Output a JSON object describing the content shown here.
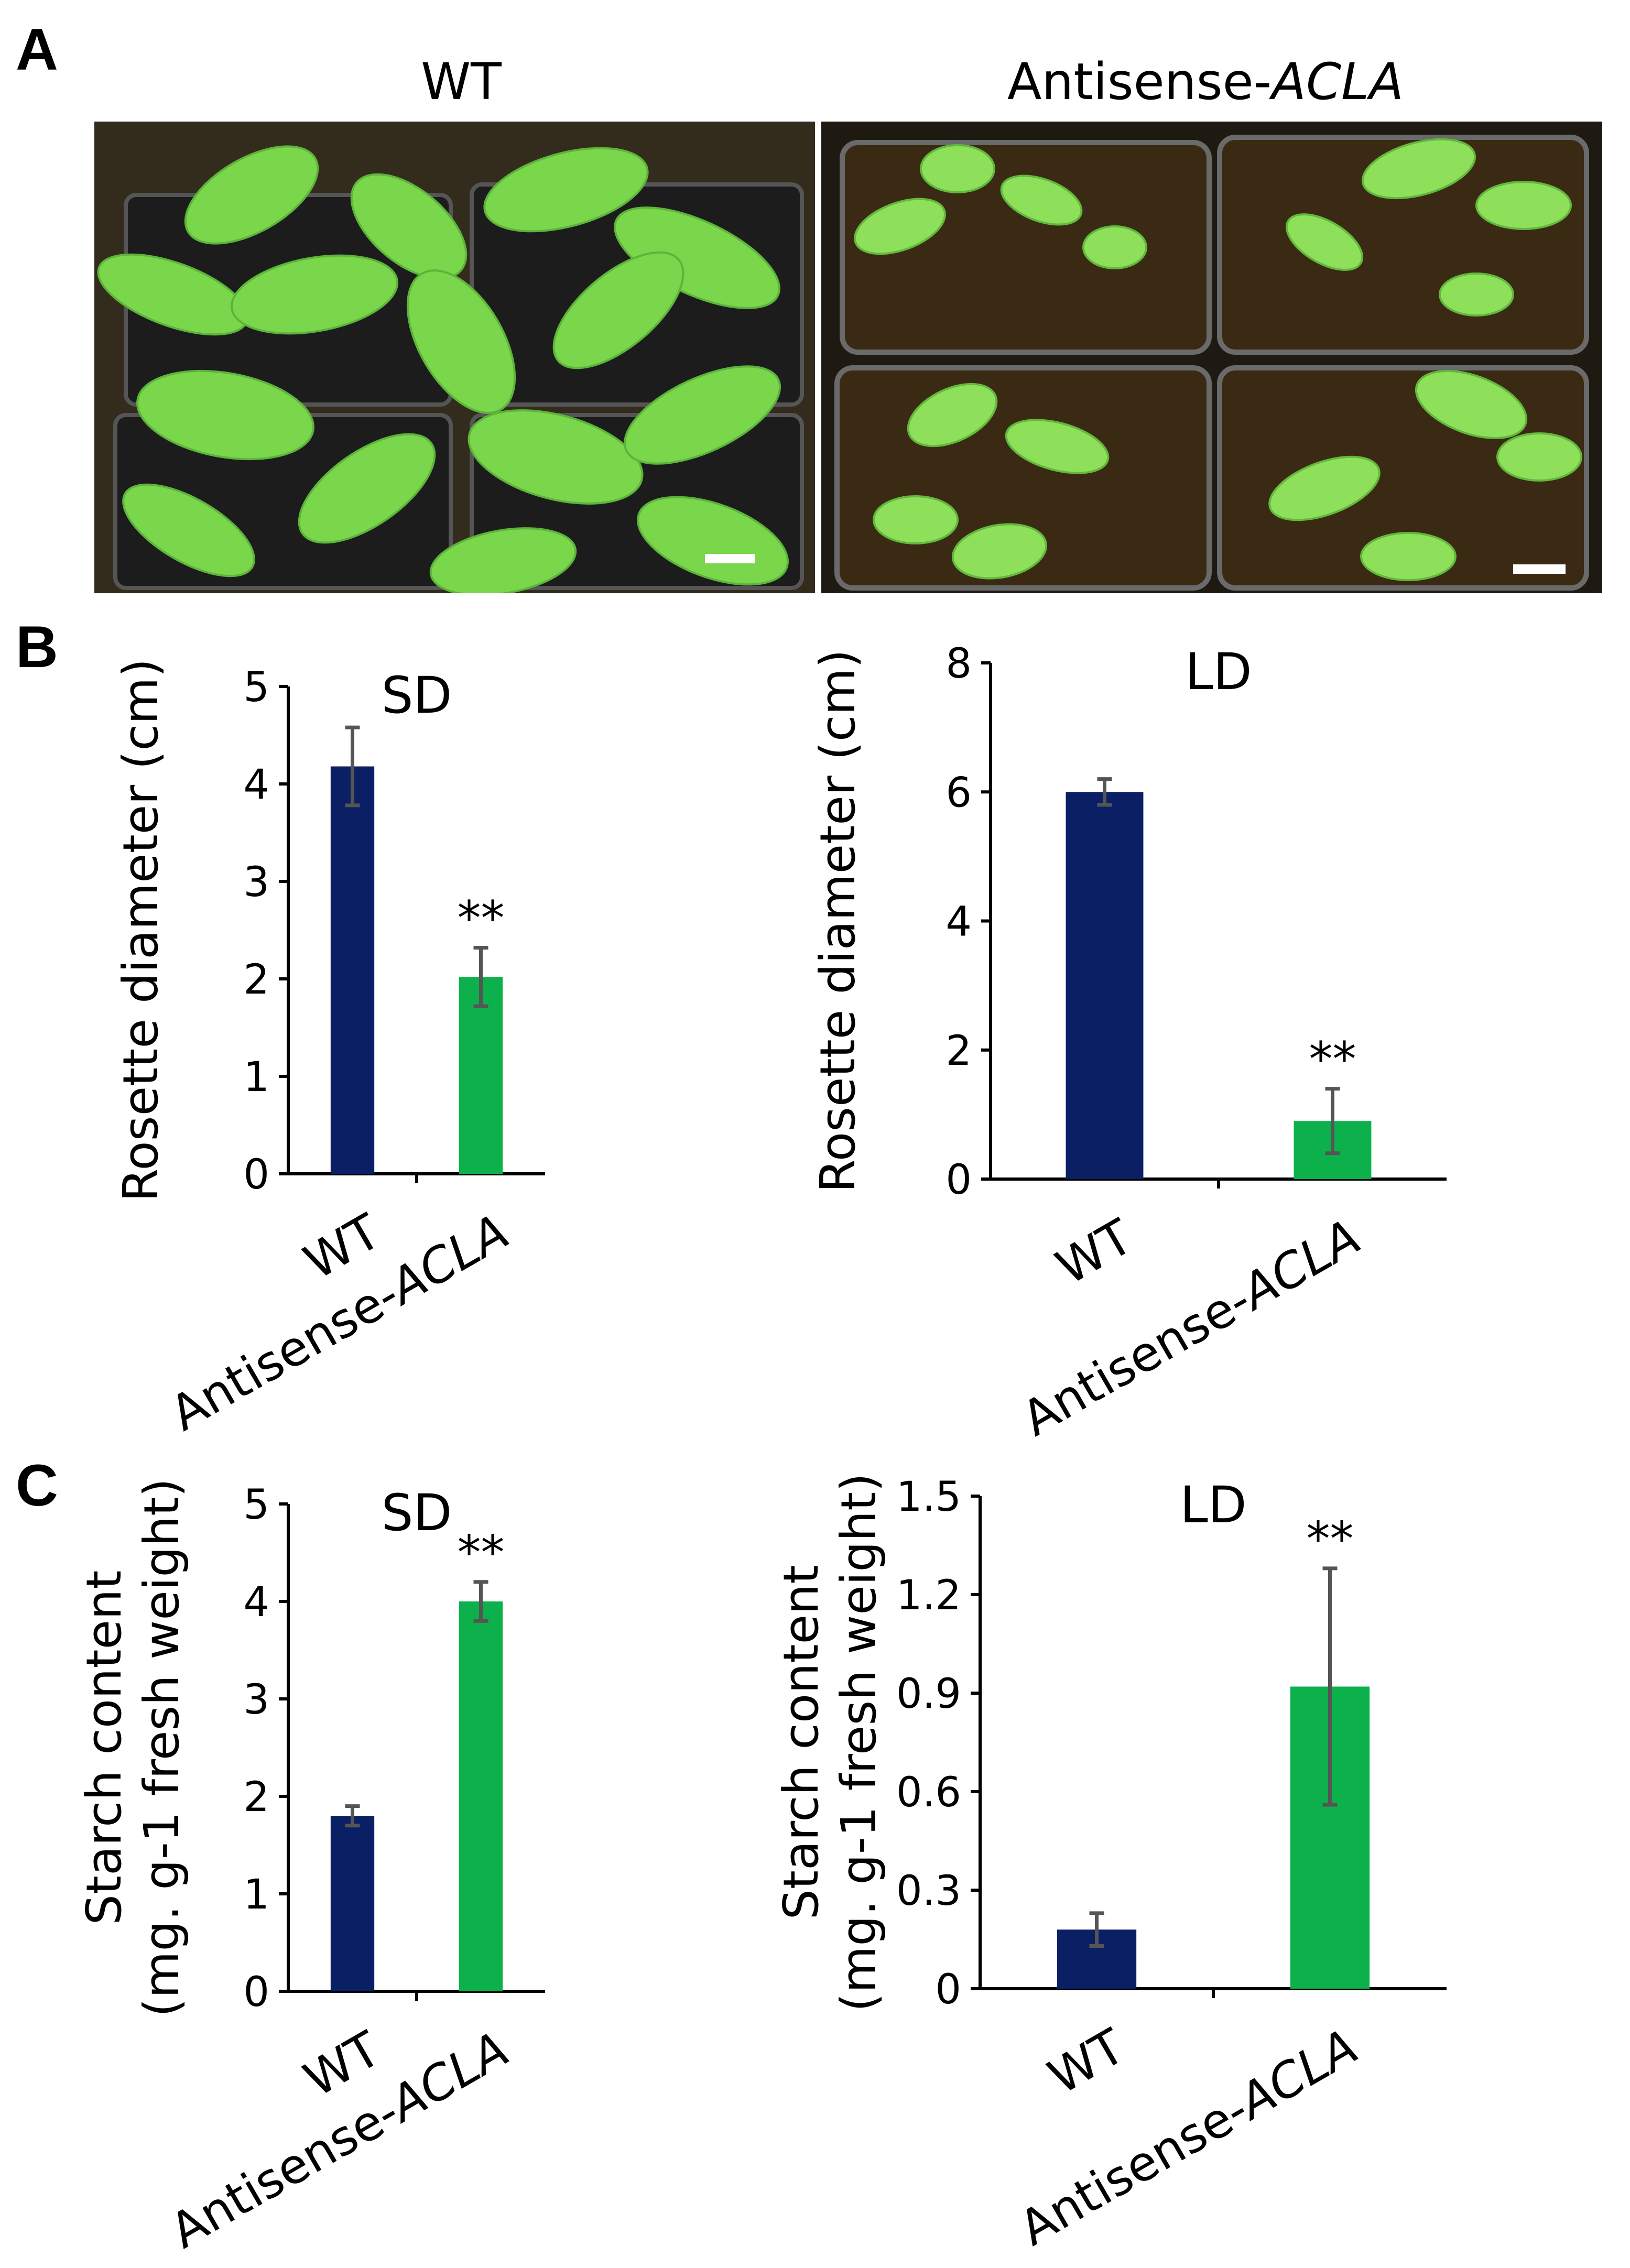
{
  "panels": {
    "A": "A",
    "B": "B",
    "C": "C"
  },
  "photos": {
    "left": {
      "label": "WT",
      "description_icon": "plant-rosette-photo"
    },
    "right": {
      "label_prefix": "Antisense-",
      "label_italic": "ACLA",
      "description_icon": "plant-rosette-photo"
    }
  },
  "colors": {
    "wt": "#0b1f64",
    "antisense": "#0db14b",
    "errorbar": "#555555",
    "leaf": "#7ad64a",
    "soil": "#3a2a14",
    "pot": "#1c1c1c"
  },
  "chart_data": [
    {
      "type": "bar",
      "panel": "B",
      "title": "SD",
      "ylabel": [
        "Rosette diameter (cm)"
      ],
      "categories": [
        "WT",
        "Antisense-ACLA"
      ],
      "values": [
        4.18,
        2.02
      ],
      "errors": [
        0.4,
        0.3
      ],
      "significance": [
        "",
        "**"
      ],
      "ylim": [
        0,
        5
      ],
      "yticks": [
        "0",
        "1",
        "2",
        "3",
        "4",
        "5"
      ]
    },
    {
      "type": "bar",
      "panel": "B",
      "title": "LD",
      "ylabel": [
        "Rosette diameter (cm)"
      ],
      "categories": [
        "WT",
        "Antisense-ACLA"
      ],
      "values": [
        6.0,
        0.9
      ],
      "errors": [
        0.2,
        0.5
      ],
      "significance": [
        "",
        "**"
      ],
      "ylim": [
        0,
        8
      ],
      "yticks": [
        "0",
        "2",
        "4",
        "6",
        "8"
      ]
    },
    {
      "type": "bar",
      "panel": "C",
      "title": "SD",
      "ylabel": [
        "Starch content",
        "(mg. g-1 fresh weight)"
      ],
      "categories": [
        "WT",
        "Antisense-ACLA"
      ],
      "values": [
        1.8,
        4.0
      ],
      "errors": [
        0.1,
        0.2
      ],
      "significance": [
        "",
        "**"
      ],
      "ylim": [
        0,
        5
      ],
      "yticks": [
        "0",
        "1",
        "2",
        "3",
        "4",
        "5"
      ]
    },
    {
      "type": "bar",
      "panel": "C",
      "title": "LD",
      "ylabel": [
        "Starch content",
        "(mg. g-1 fresh weight)"
      ],
      "categories": [
        "WT",
        "Antisense-ACLA"
      ],
      "values": [
        0.18,
        0.92
      ],
      "errors": [
        0.05,
        0.36
      ],
      "significance": [
        "",
        "**"
      ],
      "ylim": [
        0,
        1.5
      ],
      "yticks": [
        "0",
        "0.3",
        "0.6",
        "0.9",
        "1.2",
        "1.5"
      ]
    }
  ]
}
